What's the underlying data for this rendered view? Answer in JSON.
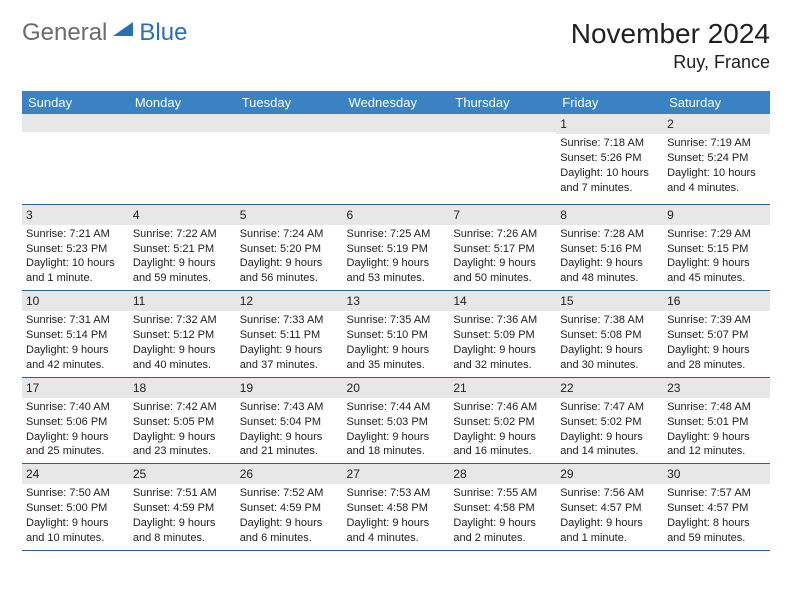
{
  "logo": {
    "word1": "General",
    "word2": "Blue",
    "word1_color": "#6b6b6b",
    "word2_color": "#2b6fb3"
  },
  "title": "November 2024",
  "location": "Ruy, France",
  "colors": {
    "header_bg": "#3a82c4",
    "header_fg": "#ffffff",
    "daynum_bg": "#e7e7e7",
    "row_border": "#2f5f93",
    "text": "#212121",
    "page_bg": "#ffffff"
  },
  "fonts": {
    "title_pt": 28,
    "location_pt": 18,
    "header_pt": 13,
    "cell_pt": 11,
    "daynum_pt": 12
  },
  "weekdays": [
    "Sunday",
    "Monday",
    "Tuesday",
    "Wednesday",
    "Thursday",
    "Friday",
    "Saturday"
  ],
  "weeks": [
    [
      {
        "n": "",
        "sunrise": "",
        "sunset": "",
        "daylight": ""
      },
      {
        "n": "",
        "sunrise": "",
        "sunset": "",
        "daylight": ""
      },
      {
        "n": "",
        "sunrise": "",
        "sunset": "",
        "daylight": ""
      },
      {
        "n": "",
        "sunrise": "",
        "sunset": "",
        "daylight": ""
      },
      {
        "n": "",
        "sunrise": "",
        "sunset": "",
        "daylight": ""
      },
      {
        "n": "1",
        "sunrise": "Sunrise: 7:18 AM",
        "sunset": "Sunset: 5:26 PM",
        "daylight": "Daylight: 10 hours and 7 minutes."
      },
      {
        "n": "2",
        "sunrise": "Sunrise: 7:19 AM",
        "sunset": "Sunset: 5:24 PM",
        "daylight": "Daylight: 10 hours and 4 minutes."
      }
    ],
    [
      {
        "n": "3",
        "sunrise": "Sunrise: 7:21 AM",
        "sunset": "Sunset: 5:23 PM",
        "daylight": "Daylight: 10 hours and 1 minute."
      },
      {
        "n": "4",
        "sunrise": "Sunrise: 7:22 AM",
        "sunset": "Sunset: 5:21 PM",
        "daylight": "Daylight: 9 hours and 59 minutes."
      },
      {
        "n": "5",
        "sunrise": "Sunrise: 7:24 AM",
        "sunset": "Sunset: 5:20 PM",
        "daylight": "Daylight: 9 hours and 56 minutes."
      },
      {
        "n": "6",
        "sunrise": "Sunrise: 7:25 AM",
        "sunset": "Sunset: 5:19 PM",
        "daylight": "Daylight: 9 hours and 53 minutes."
      },
      {
        "n": "7",
        "sunrise": "Sunrise: 7:26 AM",
        "sunset": "Sunset: 5:17 PM",
        "daylight": "Daylight: 9 hours and 50 minutes."
      },
      {
        "n": "8",
        "sunrise": "Sunrise: 7:28 AM",
        "sunset": "Sunset: 5:16 PM",
        "daylight": "Daylight: 9 hours and 48 minutes."
      },
      {
        "n": "9",
        "sunrise": "Sunrise: 7:29 AM",
        "sunset": "Sunset: 5:15 PM",
        "daylight": "Daylight: 9 hours and 45 minutes."
      }
    ],
    [
      {
        "n": "10",
        "sunrise": "Sunrise: 7:31 AM",
        "sunset": "Sunset: 5:14 PM",
        "daylight": "Daylight: 9 hours and 42 minutes."
      },
      {
        "n": "11",
        "sunrise": "Sunrise: 7:32 AM",
        "sunset": "Sunset: 5:12 PM",
        "daylight": "Daylight: 9 hours and 40 minutes."
      },
      {
        "n": "12",
        "sunrise": "Sunrise: 7:33 AM",
        "sunset": "Sunset: 5:11 PM",
        "daylight": "Daylight: 9 hours and 37 minutes."
      },
      {
        "n": "13",
        "sunrise": "Sunrise: 7:35 AM",
        "sunset": "Sunset: 5:10 PM",
        "daylight": "Daylight: 9 hours and 35 minutes."
      },
      {
        "n": "14",
        "sunrise": "Sunrise: 7:36 AM",
        "sunset": "Sunset: 5:09 PM",
        "daylight": "Daylight: 9 hours and 32 minutes."
      },
      {
        "n": "15",
        "sunrise": "Sunrise: 7:38 AM",
        "sunset": "Sunset: 5:08 PM",
        "daylight": "Daylight: 9 hours and 30 minutes."
      },
      {
        "n": "16",
        "sunrise": "Sunrise: 7:39 AM",
        "sunset": "Sunset: 5:07 PM",
        "daylight": "Daylight: 9 hours and 28 minutes."
      }
    ],
    [
      {
        "n": "17",
        "sunrise": "Sunrise: 7:40 AM",
        "sunset": "Sunset: 5:06 PM",
        "daylight": "Daylight: 9 hours and 25 minutes."
      },
      {
        "n": "18",
        "sunrise": "Sunrise: 7:42 AM",
        "sunset": "Sunset: 5:05 PM",
        "daylight": "Daylight: 9 hours and 23 minutes."
      },
      {
        "n": "19",
        "sunrise": "Sunrise: 7:43 AM",
        "sunset": "Sunset: 5:04 PM",
        "daylight": "Daylight: 9 hours and 21 minutes."
      },
      {
        "n": "20",
        "sunrise": "Sunrise: 7:44 AM",
        "sunset": "Sunset: 5:03 PM",
        "daylight": "Daylight: 9 hours and 18 minutes."
      },
      {
        "n": "21",
        "sunrise": "Sunrise: 7:46 AM",
        "sunset": "Sunset: 5:02 PM",
        "daylight": "Daylight: 9 hours and 16 minutes."
      },
      {
        "n": "22",
        "sunrise": "Sunrise: 7:47 AM",
        "sunset": "Sunset: 5:02 PM",
        "daylight": "Daylight: 9 hours and 14 minutes."
      },
      {
        "n": "23",
        "sunrise": "Sunrise: 7:48 AM",
        "sunset": "Sunset: 5:01 PM",
        "daylight": "Daylight: 9 hours and 12 minutes."
      }
    ],
    [
      {
        "n": "24",
        "sunrise": "Sunrise: 7:50 AM",
        "sunset": "Sunset: 5:00 PM",
        "daylight": "Daylight: 9 hours and 10 minutes."
      },
      {
        "n": "25",
        "sunrise": "Sunrise: 7:51 AM",
        "sunset": "Sunset: 4:59 PM",
        "daylight": "Daylight: 9 hours and 8 minutes."
      },
      {
        "n": "26",
        "sunrise": "Sunrise: 7:52 AM",
        "sunset": "Sunset: 4:59 PM",
        "daylight": "Daylight: 9 hours and 6 minutes."
      },
      {
        "n": "27",
        "sunrise": "Sunrise: 7:53 AM",
        "sunset": "Sunset: 4:58 PM",
        "daylight": "Daylight: 9 hours and 4 minutes."
      },
      {
        "n": "28",
        "sunrise": "Sunrise: 7:55 AM",
        "sunset": "Sunset: 4:58 PM",
        "daylight": "Daylight: 9 hours and 2 minutes."
      },
      {
        "n": "29",
        "sunrise": "Sunrise: 7:56 AM",
        "sunset": "Sunset: 4:57 PM",
        "daylight": "Daylight: 9 hours and 1 minute."
      },
      {
        "n": "30",
        "sunrise": "Sunrise: 7:57 AM",
        "sunset": "Sunset: 4:57 PM",
        "daylight": "Daylight: 8 hours and 59 minutes."
      }
    ]
  ]
}
